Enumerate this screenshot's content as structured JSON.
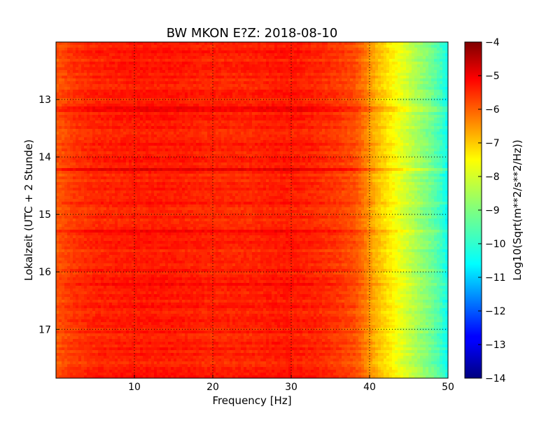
{
  "chart_data": {
    "type": "heatmap",
    "title": "BW MKON E?Z: 2018-08-10",
    "xlabel": "Frequency [Hz]",
    "ylabel": "Lokalzeit (UTC + 2 Stunde)",
    "xlim": [
      0,
      50
    ],
    "ylim": [
      17.85,
      12.0
    ],
    "y_direction": "downward-increasing",
    "x_ticks": [
      10,
      20,
      30,
      40,
      50
    ],
    "y_ticks": [
      13,
      14,
      15,
      16,
      17
    ],
    "grid": true,
    "grid_style": "dotted",
    "colorbar": {
      "label": "Log10(Sqrt(m**2/s**2/Hz))",
      "range": [
        -14,
        -4
      ],
      "ticks": [
        -4,
        -5,
        -6,
        -7,
        -8,
        -9,
        -10,
        -11,
        -12,
        -13,
        -14
      ],
      "colormap": "jet"
    },
    "spectrum_profile_freq_hz": [
      0,
      2,
      5,
      10,
      15,
      20,
      25,
      28,
      30,
      33,
      36,
      38,
      39,
      40,
      41,
      42,
      43,
      44,
      45,
      46,
      47,
      48,
      49,
      50
    ],
    "spectrum_profile_log10": [
      -6.1,
      -5.8,
      -5.6,
      -5.5,
      -5.5,
      -5.6,
      -5.6,
      -5.5,
      -5.5,
      -5.6,
      -5.8,
      -6.0,
      -6.3,
      -6.7,
      -7.1,
      -7.4,
      -7.7,
      -8.0,
      -8.3,
      -8.6,
      -8.9,
      -9.2,
      -9.6,
      -10.2
    ],
    "notable_bands": [
      {
        "time": 15.28,
        "description": "strong broadband band"
      },
      {
        "time": 13.17,
        "description": "elevated band"
      },
      {
        "time": 14.2,
        "description": "elevated band near 30-35 Hz"
      },
      {
        "time": 16.22,
        "description": "elevated band"
      }
    ]
  }
}
